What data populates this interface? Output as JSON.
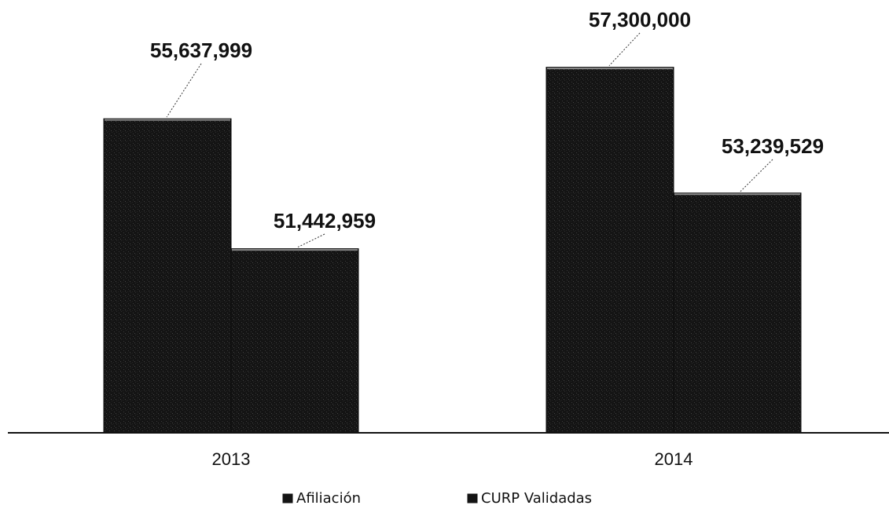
{
  "chart_data": {
    "type": "bar",
    "categories": [
      "2013",
      "2014"
    ],
    "series": [
      {
        "name": "Afiliación",
        "values": [
          55637999,
          57300000
        ],
        "labels": [
          "55,637,999",
          "57,300,000"
        ]
      },
      {
        "name": "CURP Validadas",
        "values": [
          51442959,
          53239529
        ],
        "labels": [
          "51,442,959",
          "53,239,529"
        ]
      }
    ],
    "title": "",
    "xlabel": "",
    "ylabel": "",
    "ylim": [
      45500000,
      58000000
    ],
    "grid": false,
    "legend_position": "bottom",
    "bar_color": "#141414"
  }
}
